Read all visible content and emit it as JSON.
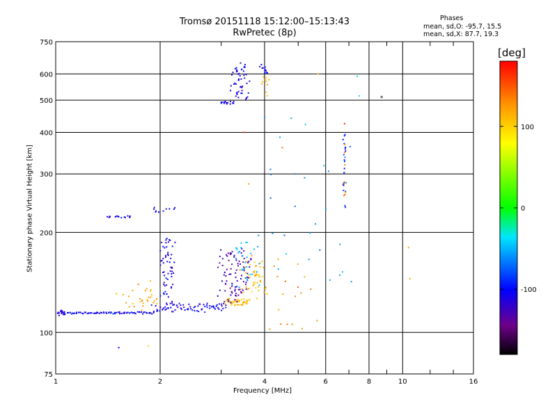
{
  "title": "Tromsø 20151118 15:12:00–15:13:43",
  "subtitle": "RwPretec (8p)",
  "phases": {
    "heading": "Phases",
    "line_o": "mean, sd,O: -95.7, 15.5",
    "line_x": "mean, sd,X:  87.7, 19.3"
  },
  "colorbar": {
    "unit": "[deg]",
    "range": [
      -180,
      180
    ],
    "tick_labels": [
      "100",
      "0",
      "-100"
    ],
    "tick_values": [
      100,
      0,
      -100
    ]
  },
  "chart_data": {
    "type": "scatter",
    "xlabel": "Frequency [MHz]",
    "ylabel": "Stationary phase Virtual Height [km]",
    "xscale": "log",
    "yscale": "log",
    "xlim": [
      1,
      16
    ],
    "ylim": [
      75,
      750
    ],
    "grid": true,
    "x_ticks": [
      1,
      2,
      4,
      6,
      8,
      10,
      16
    ],
    "x_tick_labels": [
      "1",
      "2",
      "4",
      "6",
      "8",
      "10",
      "16"
    ],
    "y_ticks": [
      75,
      100,
      200,
      300,
      400,
      500,
      600,
      750
    ],
    "y_tick_labels": [
      "75",
      "100",
      "200",
      "300",
      "400",
      "500",
      "600",
      "750"
    ],
    "color_encoding": "phase [deg]",
    "segments": [
      {
        "x0": 1.0,
        "x1": 1.08,
        "y0": 113,
        "y1": 116,
        "phase": -110,
        "n": 18,
        "jitter": 0.015
      },
      {
        "x0": 1.08,
        "x1": 1.9,
        "y0": 114,
        "y1": 115,
        "phase": -105,
        "n": 70,
        "jitter": 0.008
      },
      {
        "x0": 1.9,
        "x1": 3.1,
        "y0": 115,
        "y1": 122,
        "phase": -105,
        "n": 75,
        "jitter": 0.012
      },
      {
        "x0": 3.1,
        "x1": 3.6,
        "y0": 121,
        "y1": 126,
        "phase": 110,
        "n": 45,
        "jitter": 0.012
      },
      {
        "x0": 3.5,
        "x1": 3.95,
        "y0": 130,
        "y1": 165,
        "phase": 110,
        "n": 50,
        "jitter": 0.06
      },
      {
        "x0": 3.0,
        "x1": 3.6,
        "y0": 125,
        "y1": 175,
        "phase": -130,
        "n": 90,
        "jitter": 0.06
      },
      {
        "x0": 3.3,
        "x1": 3.8,
        "y0": 140,
        "y1": 190,
        "phase": -50,
        "n": 30,
        "jitter": 0.06
      },
      {
        "x0": 2.02,
        "x1": 2.18,
        "y0": 120,
        "y1": 195,
        "phase": -110,
        "n": 60,
        "jitter": 0.03
      },
      {
        "x0": 1.5,
        "x1": 2.0,
        "y0": 118,
        "y1": 140,
        "phase": 120,
        "n": 30,
        "jitter": 0.04
      },
      {
        "x0": 1.4,
        "x1": 1.7,
        "y0": 222,
        "y1": 224,
        "phase": -110,
        "n": 16,
        "jitter": 0.01
      },
      {
        "x0": 1.9,
        "x1": 2.2,
        "y0": 230,
        "y1": 237,
        "phase": -110,
        "n": 10,
        "jitter": 0.02
      },
      {
        "x0": 3.0,
        "x1": 3.25,
        "y0": 488,
        "y1": 496,
        "phase": -110,
        "n": 16,
        "jitter": 0.01
      },
      {
        "x0": 3.25,
        "x1": 3.55,
        "y0": 500,
        "y1": 640,
        "phase": -110,
        "n": 50,
        "jitter": 0.05
      },
      {
        "x0": 3.85,
        "x1": 4.05,
        "y0": 600,
        "y1": 640,
        "phase": -110,
        "n": 12,
        "jitter": 0.02
      },
      {
        "x0": 3.9,
        "x1": 4.1,
        "y0": 520,
        "y1": 580,
        "phase": 110,
        "n": 10,
        "jitter": 0.03
      },
      {
        "x0": 6.75,
        "x1": 6.85,
        "y0": 225,
        "y1": 400,
        "phase": -90,
        "n": 20,
        "jitter": 0.01
      },
      {
        "x0": 6.75,
        "x1": 6.85,
        "y0": 250,
        "y1": 380,
        "phase": 130,
        "n": 8,
        "jitter": 0.01
      },
      {
        "x0": 4.0,
        "x1": 6.5,
        "y0": 130,
        "y1": 420,
        "phase": -60,
        "n": 30,
        "jitter": 0.2
      },
      {
        "x0": 4.0,
        "x1": 5.5,
        "y0": 100,
        "y1": 160,
        "phase": 130,
        "n": 20,
        "jitter": 0.1
      }
    ],
    "points": [
      {
        "x": 8.7,
        "y": 510,
        "phase": null,
        "marker": "*"
      },
      {
        "x": 7.4,
        "y": 590,
        "phase": -40
      },
      {
        "x": 7.5,
        "y": 515,
        "phase": -40
      },
      {
        "x": 10.4,
        "y": 180,
        "phase": 120
      },
      {
        "x": 10.5,
        "y": 145,
        "phase": 120
      },
      {
        "x": 1.52,
        "y": 90,
        "phase": -100
      },
      {
        "x": 1.85,
        "y": 91,
        "phase": 100
      },
      {
        "x": 3.5,
        "y": 400,
        "phase": 160
      },
      {
        "x": 4.5,
        "y": 360,
        "phase": 140
      },
      {
        "x": 3.6,
        "y": 280,
        "phase": 120
      },
      {
        "x": 5.7,
        "y": 600,
        "phase": 110
      },
      {
        "x": 6.8,
        "y": 425,
        "phase": 170
      }
    ]
  }
}
